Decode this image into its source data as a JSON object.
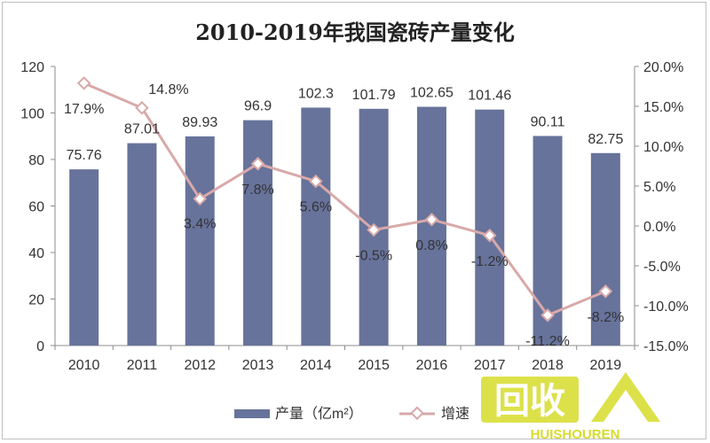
{
  "chart_data": {
    "type": "bar",
    "title": "2010-2019年我国瓷砖产量变化",
    "categories": [
      "2010",
      "2011",
      "2012",
      "2013",
      "2014",
      "2015",
      "2016",
      "2017",
      "2018",
      "2019"
    ],
    "series": [
      {
        "name": "产量（亿m²）",
        "type": "bar",
        "axis": "left",
        "values": [
          75.76,
          87.01,
          89.93,
          96.9,
          102.3,
          101.79,
          102.65,
          101.46,
          90.11,
          82.75
        ],
        "labels": [
          "75.76",
          "87.01",
          "89.93",
          "96.9",
          "102.3",
          "101.79",
          "102.65",
          "101.46",
          "90.11",
          "82.75"
        ]
      },
      {
        "name": "增速",
        "type": "line",
        "axis": "right",
        "values": [
          17.9,
          14.8,
          3.4,
          7.8,
          5.6,
          -0.5,
          0.8,
          -1.2,
          -11.2,
          -8.2
        ],
        "labels": [
          "17.9%",
          "14.8%",
          "3.4%",
          "7.8%",
          "5.6%",
          "-0.5%",
          "0.8%",
          "-1.2%",
          "-11.2%",
          "-8.2%"
        ]
      }
    ],
    "y_left": {
      "range": [
        0,
        120
      ],
      "ticks": [
        "0",
        "20",
        "40",
        "60",
        "80",
        "100",
        "120"
      ]
    },
    "y_right": {
      "range": [
        -15,
        20
      ],
      "ticks": [
        "-15.0%",
        "-10.0%",
        "-5.0%",
        "0.0%",
        "5.0%",
        "10.0%",
        "15.0%",
        "20.0%"
      ]
    },
    "legend": "bottom",
    "grid": false,
    "colors": {
      "bar": "#67739b",
      "line": "#d8a9a9",
      "axis": "#8c8c8c",
      "text": "#333333"
    }
  },
  "watermark": {
    "text": "回收",
    "subtext": "HUISHOUREN"
  }
}
